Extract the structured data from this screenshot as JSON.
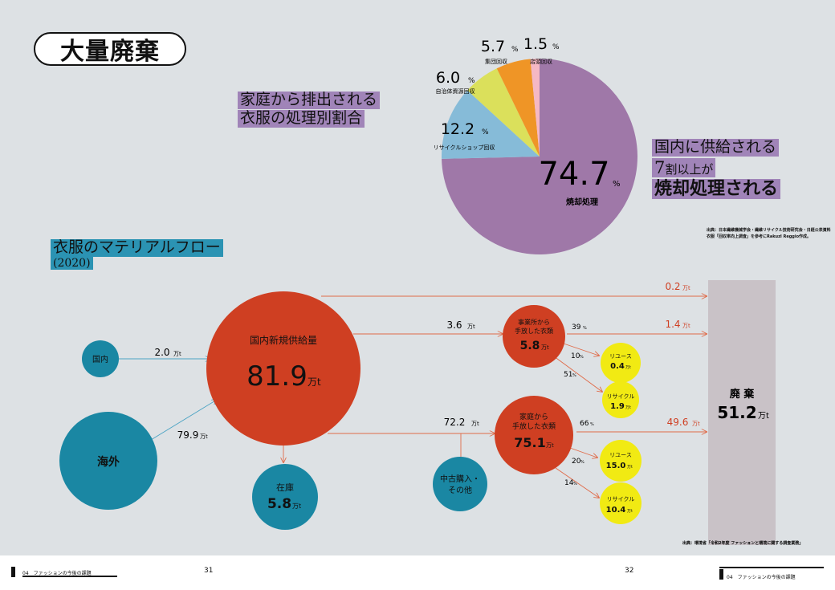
{
  "page_title": "大量廃棄",
  "pie": {
    "heading_line1": "家庭から排出される",
    "heading_line2": "衣服の処理別割合",
    "slices": [
      {
        "label": "焼却処理",
        "value": "74.7",
        "color": "#9f78a8"
      },
      {
        "label": "リサイクルショップ回収",
        "value": "12.2",
        "color": "#86bbd8"
      },
      {
        "label": "自治体資源回収",
        "value": "6.0",
        "color": "#dbe05b"
      },
      {
        "label": "集団回収",
        "value": "5.7",
        "color": "#ef9526"
      },
      {
        "label": "店頭回収",
        "value": "1.5",
        "color": "#f5b8c4"
      }
    ],
    "unit": "%"
  },
  "callout": {
    "line1": "国内に供給される",
    "line2_num": "7",
    "line2_rest": "割以上が",
    "line3": "焼却処理される"
  },
  "pie_source": {
    "line1": "出典：日本繊維機械学会・繊維リサイクル技術研究会・日経公表資料",
    "line2": "衣服「回収率向上調査」を参考にRakuzl Reggio作成。"
  },
  "flow": {
    "heading": "衣服のマテリアルフロー",
    "year": "(2020)",
    "unit": "万t",
    "nodes": {
      "domestic": "国内",
      "overseas": "海外",
      "supply_label": "国内新規供給量",
      "supply_value": "81.9",
      "stock_label": "在庫",
      "stock_value": "5.8",
      "office_line1": "事業所から",
      "office_line2": "手放した衣類",
      "office_value": "5.8",
      "home_line1": "家庭から",
      "home_line2": "手放した衣類",
      "home_value": "75.1",
      "used_line1": "中古購入・",
      "used_line2": "その他",
      "reuse_a_label": "リユース",
      "reuse_a_value": "0.4",
      "recycle_a_label": "リサイクル",
      "recycle_a_value": "1.9",
      "reuse_b_label": "リユース",
      "reuse_b_value": "15.0",
      "recycle_b_label": "リサイクル",
      "recycle_b_value": "10.4",
      "waste_label": "廃 棄",
      "waste_value": "51.2"
    },
    "flows": {
      "domestic_in": "2.0",
      "overseas_in": "79.9",
      "to_office": "3.6",
      "to_home": "72.2",
      "direct_waste": "0.2",
      "office_waste": "1.4",
      "home_waste": "49.6",
      "office_waste_pct": "39",
      "office_reuse_pct": "10",
      "office_recycle_pct": "51",
      "home_waste_pct": "66",
      "home_reuse_pct": "20",
      "home_recycle_pct": "14",
      "pct_unit": "%"
    },
    "source": "出典：環境省「令和2年度 ファッションと環境に関する調査業務」"
  },
  "footer": {
    "left_label": "04　ファッションの今後の課題",
    "page_left": "31",
    "page_right": "32",
    "right_label": "04　ファッションの今後の課題"
  }
}
